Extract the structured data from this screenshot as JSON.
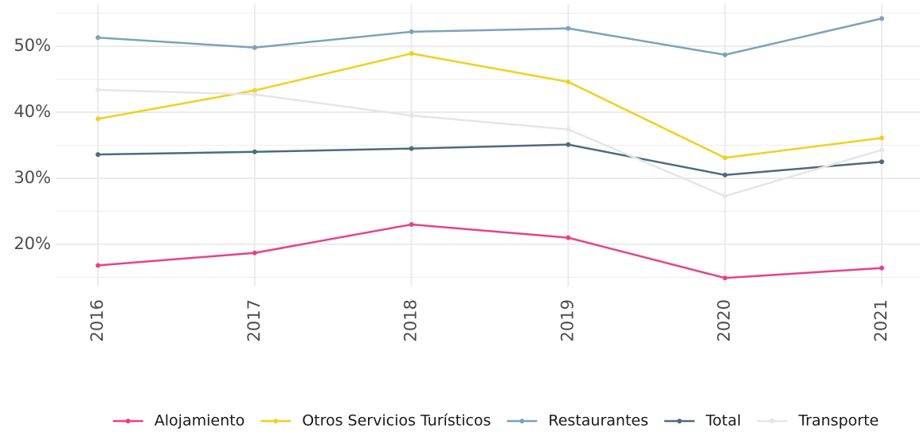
{
  "chart_data": {
    "type": "line",
    "categories": [
      "2016",
      "2017",
      "2018",
      "2019",
      "2020",
      "2021"
    ],
    "series": [
      {
        "name": "Alojamiento",
        "color": "#e8418c",
        "values": [
          16.8,
          18.7,
          23.0,
          21.0,
          14.9,
          16.4
        ]
      },
      {
        "name": "Otros Servicios Turísticos",
        "color": "#f2d01d",
        "values": [
          39.0,
          43.3,
          48.9,
          44.6,
          33.1,
          36.1
        ]
      },
      {
        "name": "Restaurantes",
        "color": "#7aa3bc",
        "values": [
          51.3,
          49.8,
          52.2,
          52.7,
          48.7,
          54.2
        ]
      },
      {
        "name": "Total",
        "color": "#4d6b80",
        "values": [
          33.6,
          34.0,
          34.5,
          35.1,
          30.5,
          32.5
        ]
      },
      {
        "name": "Transporte",
        "color": "#e6e6e6",
        "values": [
          43.4,
          42.7,
          39.5,
          37.4,
          27.3,
          34.3
        ]
      }
    ],
    "ylim": [
      13.6,
      56.4
    ],
    "yticks": [
      {
        "value": 20,
        "label": "20%"
      },
      {
        "value": 30,
        "label": "30%"
      },
      {
        "value": 40,
        "label": "40%"
      },
      {
        "value": 50,
        "label": "50%"
      }
    ],
    "yminorticks": [
      15,
      25,
      35,
      45,
      55
    ],
    "grid": true,
    "legend": "bottom"
  }
}
